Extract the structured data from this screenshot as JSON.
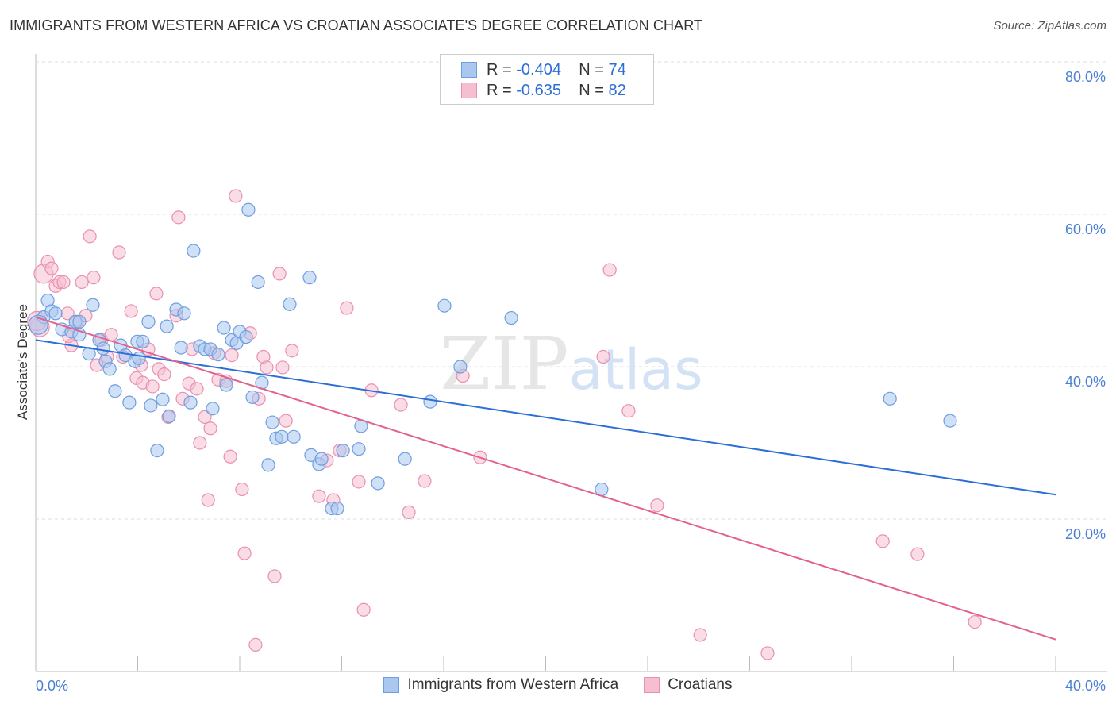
{
  "title": "IMMIGRANTS FROM WESTERN AFRICA VS CROATIAN ASSOCIATE'S DEGREE CORRELATION CHART",
  "source": "Source: ZipAtlas.com",
  "watermark": "ZIPatlas",
  "legend": [
    {
      "r_label": "R =",
      "r_value": "-0.404",
      "n_label": "N =",
      "n_value": "74"
    },
    {
      "r_label": "R =",
      "r_value": "-0.635",
      "n_label": "N =",
      "n_value": "82"
    }
  ],
  "colors": {
    "blue_fill": "#a9c7ef",
    "blue_stroke": "#6d9ee0",
    "blue_line": "#2b6fd6",
    "pink_fill": "#f6bfd1",
    "pink_stroke": "#e98fb0",
    "pink_line": "#e2628f",
    "tick": "#4a7fd4"
  },
  "chart_data": {
    "type": "scatter",
    "title": "IMMIGRANTS FROM WESTERN AFRICA VS CROATIAN ASSOCIATE'S DEGREE CORRELATION CHART",
    "xlabel": "",
    "ylabel": "Associate's Degree",
    "xlim": [
      0,
      40
    ],
    "ylim": [
      0,
      80
    ],
    "x_tick_labels": [
      "0.0%",
      "40.0%"
    ],
    "y_ticks": [
      20,
      40,
      60,
      80
    ],
    "y_tick_labels": [
      "20.0%",
      "40.0%",
      "60.0%",
      "80.0%"
    ],
    "grid": true,
    "legend_placement": "top-center",
    "series": [
      {
        "name": "Immigrants from Western Africa",
        "r": -0.404,
        "n": 74,
        "trend": [
          [
            0,
            43.5
          ],
          [
            40,
            23.2
          ]
        ],
        "points": [
          [
            0.31,
            46.5
          ],
          [
            0.47,
            48.7
          ],
          [
            0.62,
            47.3
          ],
          [
            0.78,
            47.0
          ],
          [
            1.03,
            44.9
          ],
          [
            1.4,
            44.6
          ],
          [
            1.56,
            45.9
          ],
          [
            1.71,
            44.2
          ],
          [
            2.09,
            41.7
          ],
          [
            2.24,
            48.1
          ],
          [
            2.49,
            43.5
          ],
          [
            2.74,
            40.7
          ],
          [
            2.9,
            39.7
          ],
          [
            3.11,
            36.8
          ],
          [
            3.33,
            42.8
          ],
          [
            3.52,
            41.5
          ],
          [
            3.67,
            35.3
          ],
          [
            3.89,
            40.7
          ],
          [
            3.98,
            43.3
          ],
          [
            4.2,
            43.3
          ],
          [
            4.42,
            45.9
          ],
          [
            4.51,
            34.9
          ],
          [
            4.76,
            29.0
          ],
          [
            4.98,
            35.7
          ],
          [
            5.14,
            45.3
          ],
          [
            5.23,
            33.5
          ],
          [
            5.51,
            47.5
          ],
          [
            5.7,
            42.5
          ],
          [
            5.82,
            47.0
          ],
          [
            6.07,
            35.3
          ],
          [
            6.19,
            55.2
          ],
          [
            6.44,
            42.7
          ],
          [
            6.63,
            42.3
          ],
          [
            6.85,
            42.3
          ],
          [
            6.94,
            34.5
          ],
          [
            7.16,
            41.6
          ],
          [
            7.38,
            45.1
          ],
          [
            7.47,
            37.6
          ],
          [
            7.69,
            43.5
          ],
          [
            7.88,
            43.1
          ],
          [
            8.0,
            44.6
          ],
          [
            8.25,
            43.9
          ],
          [
            8.34,
            60.6
          ],
          [
            8.5,
            36.0
          ],
          [
            8.72,
            51.1
          ],
          [
            8.87,
            37.9
          ],
          [
            9.12,
            27.1
          ],
          [
            9.28,
            32.7
          ],
          [
            9.43,
            30.6
          ],
          [
            9.65,
            30.8
          ],
          [
            9.96,
            48.2
          ],
          [
            10.12,
            30.8
          ],
          [
            10.74,
            51.7
          ],
          [
            10.8,
            28.4
          ],
          [
            11.11,
            27.2
          ],
          [
            11.21,
            27.9
          ],
          [
            11.61,
            21.4
          ],
          [
            11.83,
            21.4
          ],
          [
            12.05,
            29.0
          ],
          [
            12.67,
            29.2
          ],
          [
            12.76,
            32.2
          ],
          [
            13.42,
            24.7
          ],
          [
            14.48,
            27.9
          ],
          [
            15.47,
            35.4
          ],
          [
            16.03,
            48.0
          ],
          [
            16.65,
            40.0
          ],
          [
            18.65,
            46.4
          ],
          [
            22.19,
            23.9
          ],
          [
            33.5,
            35.8
          ],
          [
            35.86,
            32.9
          ],
          [
            0.1,
            45.5
          ],
          [
            1.71,
            45.9
          ],
          [
            2.65,
            42.4
          ],
          [
            4.05,
            41.1
          ]
        ]
      },
      {
        "name": "Croatians",
        "r": -0.635,
        "n": 82,
        "trend": [
          [
            0,
            46.5
          ],
          [
            40,
            4.2
          ]
        ],
        "points": [
          [
            0.16,
            45.2
          ],
          [
            0.31,
            52.2
          ],
          [
            0.47,
            53.8
          ],
          [
            0.62,
            52.9
          ],
          [
            0.78,
            50.6
          ],
          [
            0.93,
            51.1
          ],
          [
            1.09,
            51.1
          ],
          [
            1.25,
            47.0
          ],
          [
            1.4,
            42.8
          ],
          [
            1.62,
            45.9
          ],
          [
            1.81,
            51.1
          ],
          [
            1.96,
            46.7
          ],
          [
            2.12,
            57.1
          ],
          [
            2.27,
            51.7
          ],
          [
            2.4,
            40.2
          ],
          [
            2.58,
            43.5
          ],
          [
            2.8,
            41.3
          ],
          [
            2.96,
            44.2
          ],
          [
            3.27,
            55.0
          ],
          [
            3.42,
            41.3
          ],
          [
            3.74,
            47.3
          ],
          [
            3.95,
            38.5
          ],
          [
            4.14,
            40.2
          ],
          [
            4.2,
            37.9
          ],
          [
            4.42,
            42.3
          ],
          [
            4.58,
            37.4
          ],
          [
            4.73,
            49.6
          ],
          [
            4.83,
            39.7
          ],
          [
            5.04,
            39.0
          ],
          [
            5.2,
            33.4
          ],
          [
            5.51,
            46.7
          ],
          [
            5.6,
            59.6
          ],
          [
            5.76,
            35.8
          ],
          [
            6.01,
            37.8
          ],
          [
            6.13,
            42.3
          ],
          [
            6.32,
            37.1
          ],
          [
            6.44,
            30.0
          ],
          [
            6.63,
            33.4
          ],
          [
            6.76,
            22.5
          ],
          [
            6.85,
            31.9
          ],
          [
            7.0,
            41.8
          ],
          [
            7.16,
            38.3
          ],
          [
            7.47,
            38.1
          ],
          [
            7.63,
            28.2
          ],
          [
            7.69,
            41.5
          ],
          [
            7.84,
            62.4
          ],
          [
            8.09,
            23.9
          ],
          [
            8.19,
            15.5
          ],
          [
            8.41,
            44.4
          ],
          [
            8.62,
            3.5
          ],
          [
            8.75,
            35.8
          ],
          [
            8.93,
            41.3
          ],
          [
            9.06,
            39.9
          ],
          [
            9.37,
            12.5
          ],
          [
            9.56,
            52.2
          ],
          [
            9.68,
            39.9
          ],
          [
            9.81,
            32.9
          ],
          [
            10.05,
            42.1
          ],
          [
            11.11,
            23.0
          ],
          [
            11.42,
            27.7
          ],
          [
            11.67,
            22.5
          ],
          [
            11.92,
            29.0
          ],
          [
            12.2,
            47.7
          ],
          [
            12.67,
            24.9
          ],
          [
            12.86,
            8.1
          ],
          [
            13.17,
            36.9
          ],
          [
            14.32,
            35.0
          ],
          [
            14.63,
            20.9
          ],
          [
            15.25,
            25.0
          ],
          [
            16.75,
            38.8
          ],
          [
            17.43,
            28.1
          ],
          [
            22.26,
            41.3
          ],
          [
            22.51,
            52.7
          ],
          [
            23.25,
            34.2
          ],
          [
            24.37,
            21.8
          ],
          [
            26.06,
            4.8
          ],
          [
            28.7,
            2.4
          ],
          [
            33.22,
            17.1
          ],
          [
            34.58,
            15.4
          ],
          [
            36.83,
            6.5
          ],
          [
            0.05,
            46.0
          ],
          [
            1.3,
            44.0
          ]
        ]
      }
    ]
  }
}
